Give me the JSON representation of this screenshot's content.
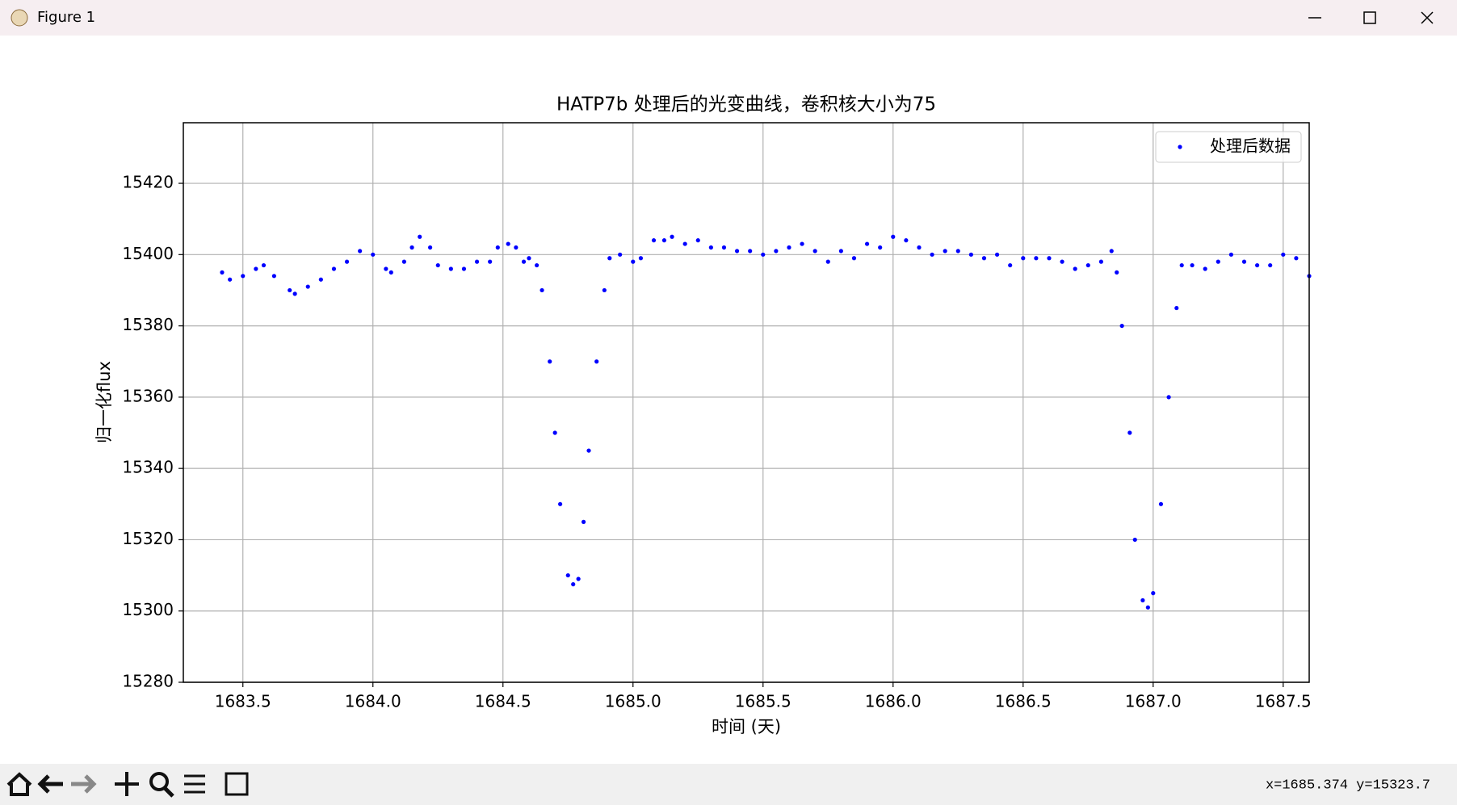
{
  "window": {
    "title": "Figure 1",
    "status": "x=1685.374 y=15323.7"
  },
  "chart_data": {
    "type": "scatter",
    "title": "HATP7b 处理后的光变曲线，卷积核大小为75",
    "x_label": "时间 (天)",
    "y_label": "归一化flux",
    "x": [
      1683.42,
      1683.45,
      1683.5,
      1683.55,
      1683.58,
      1683.62,
      1683.68,
      1683.7,
      1683.75,
      1683.8,
      1683.85,
      1683.9,
      1683.95,
      1684.0,
      1684.05,
      1684.07,
      1684.12,
      1684.15,
      1684.18,
      1684.22,
      1684.25,
      1684.3,
      1684.35,
      1684.4,
      1684.45,
      1684.48,
      1684.52,
      1684.55,
      1684.58,
      1684.6,
      1684.63,
      1684.65,
      1684.68,
      1684.7,
      1684.72,
      1684.75,
      1684.77,
      1684.79,
      1684.81,
      1684.83,
      1684.86,
      1684.89,
      1684.91,
      1684.95,
      1685.0,
      1685.03,
      1685.08,
      1685.12,
      1685.15,
      1685.2,
      1685.25,
      1685.3,
      1685.35,
      1685.4,
      1685.45,
      1685.5,
      1685.55,
      1685.6,
      1685.65,
      1685.7,
      1685.75,
      1685.8,
      1685.85,
      1685.9,
      1685.95,
      1686.0,
      1686.05,
      1686.1,
      1686.15,
      1686.2,
      1686.25,
      1686.3,
      1686.35,
      1686.4,
      1686.45,
      1686.5,
      1686.55,
      1686.6,
      1686.65,
      1686.7,
      1686.75,
      1686.8,
      1686.84,
      1686.86,
      1686.88,
      1686.91,
      1686.93,
      1686.96,
      1686.98,
      1687.0,
      1687.03,
      1687.06,
      1687.09,
      1687.11,
      1687.15,
      1687.2,
      1687.25,
      1687.3,
      1687.35,
      1687.4,
      1687.45,
      1687.5,
      1687.55,
      1687.6
    ],
    "series": [
      {
        "name": "处理后数据",
        "color": "#0000ff",
        "values": [
          15395,
          15393,
          15394,
          15396,
          15397,
          15394,
          15390,
          15389,
          15391,
          15393,
          15396,
          15398,
          15401,
          15400,
          15396,
          15395,
          15398,
          15402,
          15405,
          15402,
          15397,
          15396,
          15396,
          15398,
          15398,
          15402,
          15403,
          15402,
          15398,
          15399,
          15397,
          15390,
          15370,
          15350,
          15330,
          15310,
          15307.5,
          15309,
          15325,
          15345,
          15370,
          15390,
          15399,
          15400,
          15398,
          15399,
          15404,
          15404,
          15405,
          15403,
          15404,
          15402,
          15402,
          15401,
          15401,
          15400,
          15401,
          15402,
          15403,
          15401,
          15398,
          15401,
          15399,
          15403,
          15402,
          15405,
          15404,
          15402,
          15400,
          15401,
          15401,
          15400,
          15399,
          15400,
          15397,
          15399,
          15399,
          15399,
          15398,
          15396,
          15397,
          15398,
          15401,
          15395,
          15380,
          15350,
          15320,
          15303,
          15301,
          15305,
          15330,
          15360,
          15385,
          15397,
          15397,
          15396,
          15398,
          15400,
          15398,
          15397,
          15397,
          15400,
          15399,
          15394
        ]
      }
    ],
    "xlim": [
      1683.271,
      1687.6
    ],
    "xticks": [
      1683.5,
      {
        "value": 1684.0,
        "label": "1684.0"
      },
      1684.5,
      {
        "value": 1685.0,
        "label": "1685.0"
      },
      1685.5,
      {
        "value": 1686.0,
        "label": "1686.0"
      },
      1686.5,
      {
        "value": 1687.0,
        "label": "1687.0"
      },
      1687.5
    ],
    "ylim": [
      15280,
      15437
    ],
    "yticks": [
      15280,
      15300,
      15320,
      15340,
      15360,
      15380,
      15400,
      15420
    ],
    "grid": true,
    "legend": "upper right"
  }
}
